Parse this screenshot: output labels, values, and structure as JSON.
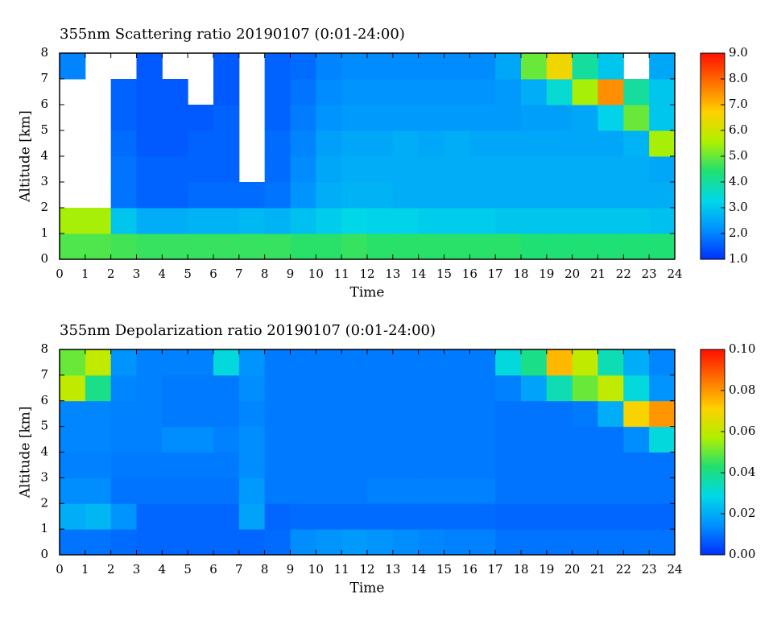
{
  "chart_data": [
    {
      "type": "heatmap",
      "title": "355nm Scattering ratio  20190107 (0:01-24:00)",
      "xlabel": "Time",
      "ylabel": "Altitude [km]",
      "xbins": [
        0,
        1,
        2,
        3,
        4,
        5,
        6,
        7,
        8,
        9,
        10,
        11,
        12,
        13,
        14,
        15,
        16,
        17,
        18,
        19,
        20,
        21,
        22,
        23,
        24
      ],
      "ybins": [
        0,
        1,
        2,
        3,
        4,
        5,
        6,
        7,
        8
      ],
      "xlim": [
        0,
        24
      ],
      "ylim": [
        0,
        8
      ],
      "xticks": [
        0,
        1,
        2,
        3,
        4,
        5,
        6,
        7,
        8,
        9,
        10,
        11,
        12,
        13,
        14,
        15,
        16,
        17,
        18,
        19,
        20,
        21,
        22,
        23,
        24
      ],
      "yticks": [
        0,
        1,
        2,
        3,
        4,
        5,
        6,
        7,
        8
      ],
      "zlim": [
        1,
        9
      ],
      "zticks": [
        {
          "value": 1,
          "label": "1.0"
        },
        {
          "value": 2,
          "label": "2.0"
        },
        {
          "value": 3,
          "label": "3.0"
        },
        {
          "value": 4,
          "label": "4.0"
        },
        {
          "value": 5,
          "label": "5.0"
        },
        {
          "value": 6,
          "label": "6.0"
        },
        {
          "value": 7,
          "label": "7.0"
        },
        {
          "value": 8,
          "label": "8.0"
        },
        {
          "value": 9,
          "label": "9.0"
        }
      ],
      "colormap": [
        "#0030ff",
        "#0090ff",
        "#00d8e8",
        "#20e070",
        "#b0f000",
        "#ffd000",
        "#ff7000",
        "#ff1000"
      ],
      "z": [
        [
          4.8,
          4.8,
          4.7,
          4.6,
          4.6,
          4.6,
          4.6,
          4.6,
          4.6,
          4.5,
          4.5,
          4.6,
          4.5,
          4.5,
          4.5,
          4.5,
          4.5,
          4.5,
          4.4,
          4.4,
          4.4,
          4.4,
          4.4,
          4.4
        ],
        [
          5.5,
          5.5,
          3.0,
          2.6,
          2.6,
          2.7,
          2.7,
          2.8,
          2.7,
          2.9,
          3.1,
          3.3,
          3.2,
          3.2,
          3.1,
          3.1,
          3.1,
          3.0,
          3.0,
          3.0,
          3.0,
          3.0,
          3.0,
          2.9
        ],
        [
          null,
          null,
          1.8,
          1.6,
          1.6,
          1.7,
          1.7,
          1.7,
          1.8,
          2.2,
          2.6,
          2.7,
          2.7,
          2.6,
          2.6,
          2.6,
          2.6,
          2.6,
          2.6,
          2.6,
          2.6,
          2.6,
          2.6,
          2.6
        ],
        [
          null,
          null,
          1.8,
          1.6,
          1.6,
          1.6,
          1.6,
          null,
          1.7,
          2.1,
          2.5,
          2.6,
          2.6,
          2.6,
          2.6,
          2.6,
          2.6,
          2.6,
          2.6,
          2.6,
          2.6,
          2.6,
          2.6,
          2.5
        ],
        [
          null,
          null,
          1.7,
          1.5,
          1.5,
          1.6,
          1.6,
          null,
          1.7,
          2.0,
          2.4,
          2.5,
          2.5,
          2.6,
          2.5,
          2.6,
          2.5,
          2.5,
          2.5,
          2.5,
          2.5,
          2.5,
          2.7,
          5.5
        ],
        [
          null,
          null,
          1.6,
          1.5,
          1.5,
          1.5,
          1.6,
          null,
          1.6,
          1.9,
          2.2,
          2.3,
          2.3,
          2.3,
          2.3,
          2.3,
          2.3,
          2.3,
          2.4,
          2.4,
          2.5,
          3.2,
          5.0,
          3.0
        ],
        [
          null,
          null,
          1.6,
          1.5,
          1.5,
          null,
          1.5,
          null,
          1.6,
          1.8,
          2.1,
          2.2,
          2.2,
          2.2,
          2.2,
          2.2,
          2.2,
          2.3,
          2.6,
          3.5,
          5.5,
          7.5,
          4.0,
          3.0
        ],
        [
          2.0,
          null,
          null,
          1.5,
          null,
          null,
          1.5,
          null,
          1.6,
          1.7,
          2.0,
          2.1,
          2.1,
          2.1,
          2.1,
          2.1,
          2.1,
          2.5,
          5.0,
          6.5,
          4.0,
          3.0,
          null,
          2.5
        ]
      ]
    },
    {
      "type": "heatmap",
      "title": "355nm Depolarization ratio  20190107 (0:01-24:00)",
      "xlabel": "Time",
      "ylabel": "Altitude [km]",
      "xbins": [
        0,
        1,
        2,
        3,
        4,
        5,
        6,
        7,
        8,
        9,
        10,
        11,
        12,
        13,
        14,
        15,
        16,
        17,
        18,
        19,
        20,
        21,
        22,
        23,
        24
      ],
      "ybins": [
        0,
        1,
        2,
        3,
        4,
        5,
        6,
        7,
        8
      ],
      "xlim": [
        0,
        24
      ],
      "ylim": [
        0,
        8
      ],
      "xticks": [
        0,
        1,
        2,
        3,
        4,
        5,
        6,
        7,
        8,
        9,
        10,
        11,
        12,
        13,
        14,
        15,
        16,
        17,
        18,
        19,
        20,
        21,
        22,
        23,
        24
      ],
      "yticks": [
        0,
        1,
        2,
        3,
        4,
        5,
        6,
        7,
        8
      ],
      "zlim": [
        0,
        0.1
      ],
      "zticks": [
        {
          "value": 0,
          "label": "0.00"
        },
        {
          "value": 0.02,
          "label": "0.02"
        },
        {
          "value": 0.04,
          "label": "0.04"
        },
        {
          "value": 0.06,
          "label": "0.06"
        },
        {
          "value": 0.08,
          "label": "0.08"
        },
        {
          "value": 0.1,
          "label": "0.10"
        }
      ],
      "colormap": [
        "#0030ff",
        "#0090ff",
        "#00d8e8",
        "#20e070",
        "#b0f000",
        "#ffd000",
        "#ff7000",
        "#ff1000"
      ],
      "z": [
        [
          0.01,
          0.01,
          0.009,
          0.008,
          0.008,
          0.008,
          0.008,
          0.008,
          0.009,
          0.014,
          0.015,
          0.016,
          0.015,
          0.014,
          0.013,
          0.012,
          0.012,
          0.01,
          0.01,
          0.01,
          0.01,
          0.01,
          0.01,
          0.01
        ],
        [
          0.02,
          0.022,
          0.015,
          0.008,
          0.008,
          0.008,
          0.008,
          0.018,
          0.008,
          0.009,
          0.009,
          0.009,
          0.009,
          0.009,
          0.009,
          0.009,
          0.009,
          0.008,
          0.008,
          0.008,
          0.008,
          0.008,
          0.008,
          0.008
        ],
        [
          0.014,
          0.014,
          0.01,
          0.01,
          0.01,
          0.01,
          0.01,
          0.016,
          0.011,
          0.011,
          0.011,
          0.011,
          0.012,
          0.012,
          0.012,
          0.012,
          0.012,
          0.01,
          0.01,
          0.01,
          0.01,
          0.01,
          0.01,
          0.01
        ],
        [
          0.012,
          0.012,
          0.011,
          0.011,
          0.011,
          0.011,
          0.011,
          0.014,
          0.011,
          0.011,
          0.011,
          0.011,
          0.011,
          0.011,
          0.011,
          0.011,
          0.011,
          0.01,
          0.01,
          0.01,
          0.01,
          0.01,
          0.01,
          0.01
        ],
        [
          0.013,
          0.013,
          0.012,
          0.012,
          0.014,
          0.014,
          0.012,
          0.014,
          0.011,
          0.011,
          0.011,
          0.011,
          0.011,
          0.011,
          0.011,
          0.011,
          0.011,
          0.01,
          0.01,
          0.01,
          0.01,
          0.01,
          0.014,
          0.03
        ],
        [
          0.013,
          0.013,
          0.012,
          0.012,
          0.011,
          0.011,
          0.011,
          0.013,
          0.011,
          0.011,
          0.011,
          0.011,
          0.011,
          0.011,
          0.011,
          0.011,
          0.011,
          0.01,
          0.01,
          0.01,
          0.011,
          0.02,
          0.07,
          0.08
        ],
        [
          0.06,
          0.04,
          0.013,
          0.012,
          0.011,
          0.011,
          0.011,
          0.014,
          0.011,
          0.011,
          0.011,
          0.011,
          0.011,
          0.011,
          0.011,
          0.011,
          0.011,
          0.012,
          0.018,
          0.035,
          0.05,
          0.06,
          0.03,
          0.015
        ],
        [
          0.05,
          0.06,
          0.015,
          0.012,
          0.012,
          0.012,
          0.03,
          0.015,
          0.011,
          0.011,
          0.011,
          0.011,
          0.011,
          0.011,
          0.011,
          0.011,
          0.011,
          0.03,
          0.04,
          0.075,
          0.06,
          0.035,
          0.02,
          0.013
        ]
      ]
    }
  ]
}
